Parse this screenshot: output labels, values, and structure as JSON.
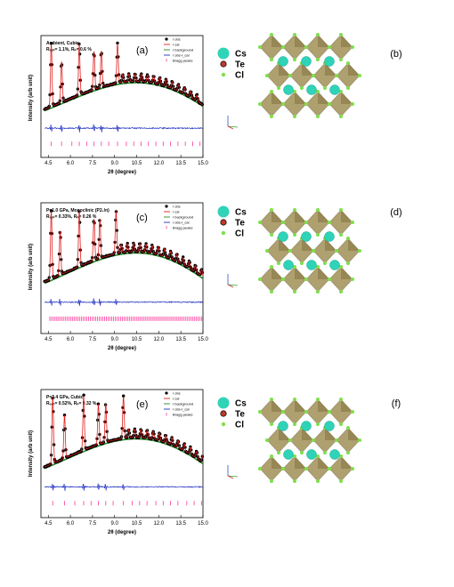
{
  "chart_data": [
    {
      "type": "line",
      "panel": "(a)",
      "annotation": [
        "Ambient, Cubic",
        "Rₑₓₚ= 1.1%, Rₚ= 0.6 %"
      ],
      "xlabel": "2θ (degree)",
      "ylabel": "Intensity (arb unit)",
      "xlim": [
        4.0,
        15.0
      ],
      "xticks": [
        "4.5",
        "6.0",
        "7.5",
        "9.0",
        "10.5",
        "12.0",
        "13.5",
        "15.0"
      ],
      "legend": [
        "I_obs",
        "I_cal",
        "I_background",
        "I_obs-I_cal",
        "Bragg peaks"
      ],
      "peaks": [
        4.7,
        5.4,
        6.6,
        7.6,
        8.1,
        9.2
      ],
      "bragg": [
        4.7,
        5.4,
        6.1,
        6.6,
        7.1,
        7.6,
        8.1,
        8.6,
        9.2,
        9.8,
        10.3,
        10.8,
        11.3,
        11.8,
        12.3,
        12.8,
        13.3,
        13.8,
        14.3,
        14.8
      ]
    },
    {
      "type": "line",
      "panel": "(c)",
      "annotation": [
        "P=1.0 GPa, Monoclinic (P2₁/n)",
        "Rₑₓₚ= 0.33%, Rₚ= 0.26 %"
      ],
      "xlabel": "2θ (degree)",
      "ylabel": "Intensity (arb unit)",
      "xlim": [
        4.0,
        15.0
      ],
      "xticks": [
        "4.5",
        "6.0",
        "7.5",
        "9.0",
        "10.5",
        "12.0",
        "13.5",
        "15.0"
      ],
      "legend": [
        "I_obs",
        "I_cal",
        "I_background",
        "I_obs-I_cal",
        "Bragg peaks"
      ],
      "peaks": [
        4.7,
        5.3,
        6.6,
        7.6,
        8.0,
        9.1
      ],
      "bragg": "dense"
    },
    {
      "type": "line",
      "panel": "(e)",
      "annotation": [
        "P=3.4 GPa, Cubic",
        "Rₑₓₚ= 0.52%, Rₚ= 0.32 %"
      ],
      "xlabel": "2θ (degree)",
      "ylabel": "Intensity (arb unit)",
      "xlim": [
        4.0,
        15.0
      ],
      "xticks": [
        "4.5",
        "6.0",
        "7.5",
        "9.0",
        "10.5",
        "12.0",
        "13.5",
        "15.0"
      ],
      "legend": [
        "I_obs",
        "I_cal",
        "I_background",
        "I_obs-I_cal",
        "Bragg peaks"
      ],
      "peaks": [
        4.8,
        5.6,
        6.9,
        7.9,
        8.4,
        9.6
      ],
      "bragg": [
        4.8,
        5.6,
        6.3,
        6.9,
        7.4,
        7.9,
        8.4,
        8.9,
        9.6,
        10.2,
        10.7,
        11.2,
        11.8,
        12.3,
        12.8,
        13.3,
        13.9,
        14.4,
        14.9
      ]
    }
  ],
  "structures": [
    {
      "panel": "(b)",
      "legend": [
        "Cs",
        "Te",
        "Cl"
      ]
    },
    {
      "panel": "(d)",
      "legend": [
        "Cs",
        "Te",
        "Cl"
      ]
    },
    {
      "panel": "(f)",
      "legend": [
        "Cs",
        "Te",
        "Cl"
      ]
    }
  ],
  "colors": {
    "obs": "#000000",
    "cal": "#e02020",
    "bg": "#2a8a2a",
    "diff": "#1f2fbf",
    "bragg": "#ff3399",
    "octa": "#a69660",
    "cs": "#2fd3b8",
    "cl": "#7ee04a"
  }
}
